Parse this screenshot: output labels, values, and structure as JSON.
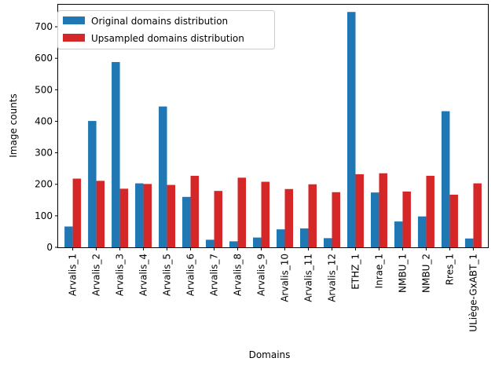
{
  "chart_data": {
    "type": "bar",
    "xlabel": "Domains",
    "ylabel": "Image counts",
    "ylim": [
      0,
      770
    ],
    "yticks": [
      0,
      100,
      200,
      300,
      400,
      500,
      600,
      700
    ],
    "grid": false,
    "legend_position": "top-left",
    "categories": [
      "Arvalis_1",
      "Arvalis_2",
      "Arvalis_3",
      "Arvalis_4",
      "Arvalis_5",
      "Arvalis_6",
      "Arvalis_7",
      "Arvalis_8",
      "Arvalis_9",
      "Arvalis_10",
      "Arvalis_11",
      "Arvalis_12",
      "ETHZ_1",
      "Inrae_1",
      "NMBU_1",
      "NMBU_2",
      "Rres_1",
      "ULiège-GxABT_1"
    ],
    "series": [
      {
        "name": "Original domains distribution",
        "color": "#1f77b4",
        "values": [
          66,
          401,
          588,
          203,
          447,
          160,
          24,
          19,
          31,
          57,
          60,
          29,
          747,
          174,
          82,
          98,
          432,
          28
        ]
      },
      {
        "name": "Upsampled domains distribution",
        "color": "#d62728",
        "values": [
          218,
          211,
          186,
          201,
          198,
          227,
          179,
          221,
          208,
          185,
          200,
          175,
          232,
          235,
          177,
          227,
          167,
          203
        ]
      }
    ]
  }
}
